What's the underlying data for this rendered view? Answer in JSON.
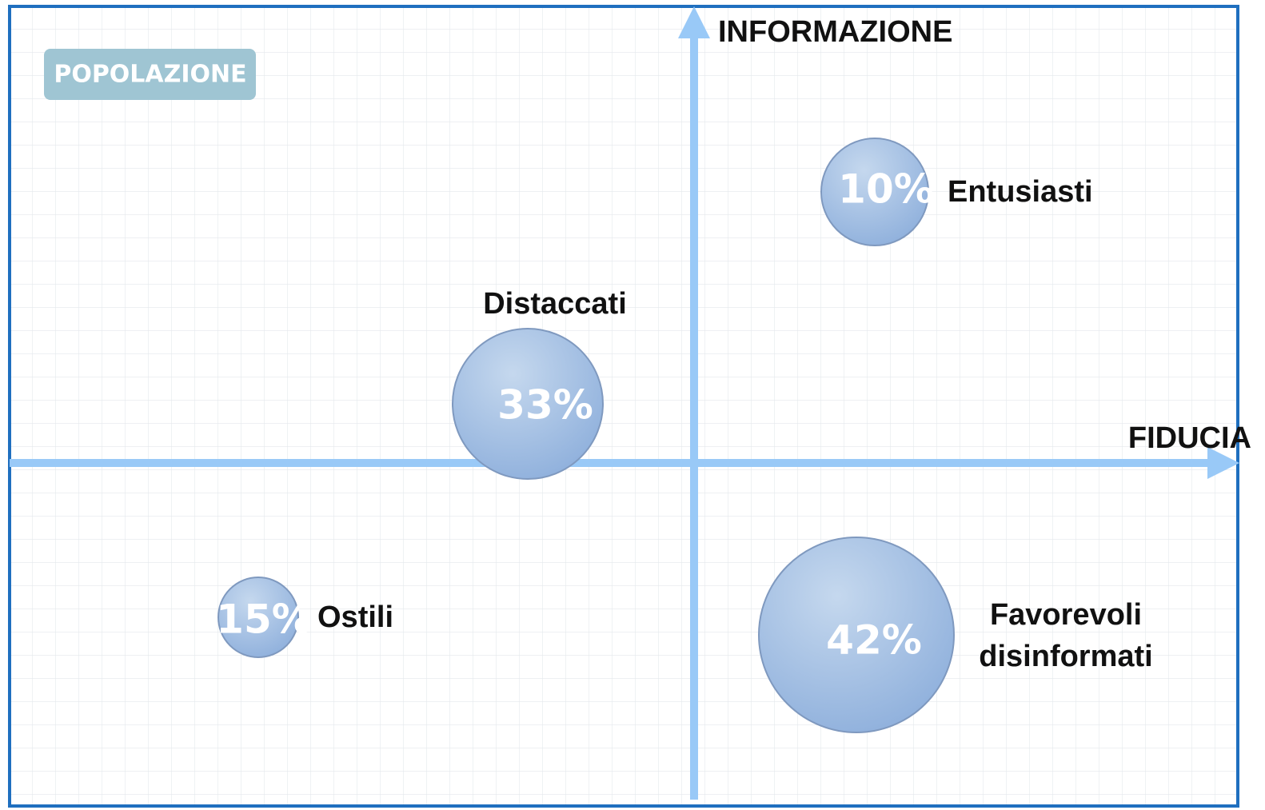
{
  "badge": "POPOLAZIONE",
  "axes": {
    "x": "FIDUCIA",
    "y": "INFORMAZIONE"
  },
  "bubbles": [
    {
      "value_label": "10%",
      "label": [
        "Entusiasti"
      ]
    },
    {
      "value_label": "33%",
      "label": [
        "Distaccati"
      ]
    },
    {
      "value_label": "15%",
      "label": [
        "Ostili"
      ]
    },
    {
      "value_label": "42%",
      "label": [
        "Favorevoli",
        "disinformati"
      ]
    }
  ]
}
